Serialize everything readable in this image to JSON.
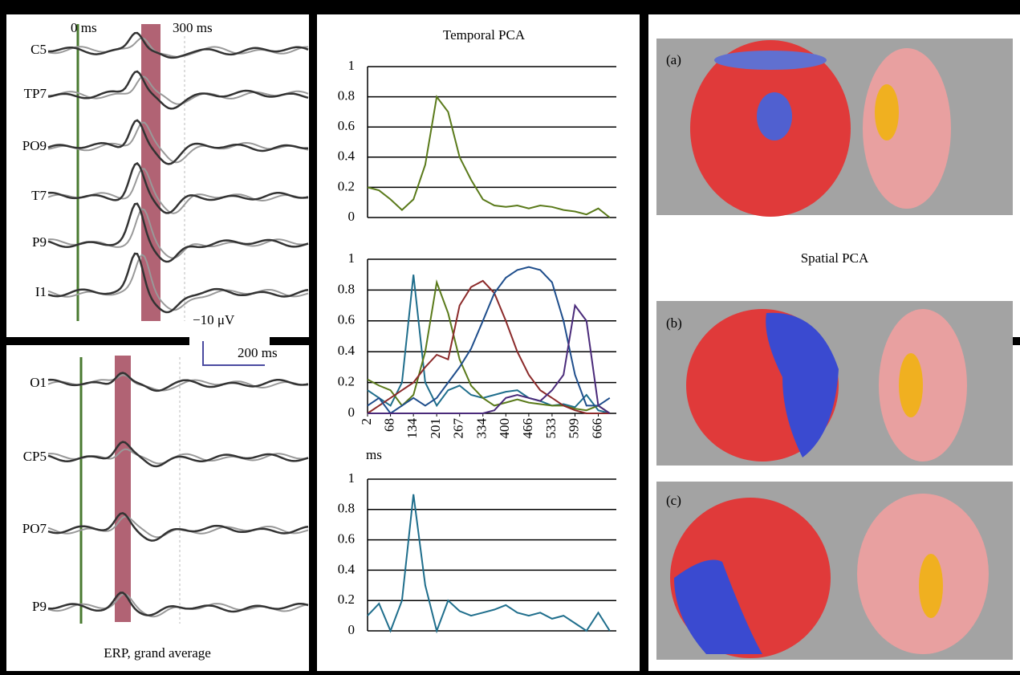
{
  "chart_data": [
    {
      "type": "line",
      "title": "Temporal PCA",
      "x": [
        2,
        35,
        68,
        101,
        134,
        168,
        201,
        234,
        267,
        300,
        334,
        367,
        400,
        433,
        466,
        499,
        533,
        566,
        599,
        632,
        666,
        699
      ],
      "xlim": [
        2,
        718
      ],
      "ylim": [
        0,
        1
      ],
      "yticks": [
        0,
        0.2,
        0.4,
        0.6,
        0.8,
        1
      ],
      "grid": true,
      "series": [
        {
          "color": "#5a7a1a",
          "values": [
            0.2,
            0.18,
            0.12,
            0.05,
            0.12,
            0.35,
            0.8,
            0.7,
            0.4,
            0.25,
            0.12,
            0.08,
            0.07,
            0.08,
            0.06,
            0.08,
            0.07,
            0.05,
            0.04,
            0.02,
            0.06,
            0.0
          ]
        }
      ]
    },
    {
      "type": "line",
      "xlabel": "ms",
      "x": [
        2,
        35,
        68,
        101,
        134,
        168,
        201,
        234,
        267,
        300,
        334,
        367,
        400,
        433,
        466,
        499,
        533,
        566,
        599,
        632,
        666,
        699
      ],
      "xlim": [
        2,
        718
      ],
      "ylim": [
        0,
        1
      ],
      "yticks": [
        0,
        0.2,
        0.4,
        0.6,
        0.8,
        1
      ],
      "grid": true,
      "xticks": [
        2,
        68,
        134,
        201,
        267,
        334,
        400,
        466,
        533,
        599,
        666
      ],
      "series": [
        {
          "color": "#1f6e8c",
          "values": [
            0.15,
            0.1,
            0.05,
            0.2,
            0.9,
            0.2,
            0.05,
            0.15,
            0.18,
            0.12,
            0.1,
            0.12,
            0.14,
            0.15,
            0.1,
            0.08,
            0.05,
            0.06,
            0.04,
            0.12,
            0.02,
            0.0
          ]
        },
        {
          "color": "#5a7a1a",
          "values": [
            0.22,
            0.18,
            0.15,
            0.05,
            0.12,
            0.4,
            0.85,
            0.65,
            0.35,
            0.18,
            0.1,
            0.05,
            0.07,
            0.09,
            0.07,
            0.06,
            0.05,
            0.05,
            0.03,
            0.02,
            0.05,
            0.0
          ]
        },
        {
          "color": "#8b2a2a",
          "values": [
            0.0,
            0.05,
            0.1,
            0.15,
            0.2,
            0.3,
            0.38,
            0.35,
            0.7,
            0.82,
            0.86,
            0.78,
            0.6,
            0.4,
            0.25,
            0.15,
            0.1,
            0.05,
            0.02,
            0.0,
            0.0,
            0.0
          ]
        },
        {
          "color": "#1f4e8c",
          "values": [
            0.05,
            0.1,
            0.0,
            0.05,
            0.1,
            0.05,
            0.1,
            0.2,
            0.3,
            0.42,
            0.6,
            0.78,
            0.88,
            0.93,
            0.95,
            0.93,
            0.85,
            0.6,
            0.25,
            0.05,
            0.05,
            0.1
          ]
        },
        {
          "color": "#4a2a7a",
          "values": [
            0.0,
            0.0,
            0.0,
            0.0,
            0.0,
            0.0,
            0.0,
            0.0,
            0.0,
            0.0,
            0.0,
            0.02,
            0.1,
            0.12,
            0.1,
            0.08,
            0.15,
            0.25,
            0.7,
            0.6,
            0.05,
            0.0
          ]
        }
      ]
    },
    {
      "type": "line",
      "x": [
        2,
        35,
        68,
        101,
        134,
        168,
        201,
        234,
        267,
        300,
        334,
        367,
        400,
        433,
        466,
        499,
        533,
        566,
        599,
        632,
        666,
        699
      ],
      "xlim": [
        2,
        718
      ],
      "ylim": [
        0,
        1
      ],
      "yticks": [
        0,
        0.2,
        0.4,
        0.6,
        0.8,
        1
      ],
      "grid": true,
      "series": [
        {
          "color": "#1f6e8c",
          "values": [
            0.1,
            0.18,
            0.0,
            0.2,
            0.9,
            0.3,
            0.0,
            0.2,
            0.13,
            0.1,
            0.12,
            0.14,
            0.17,
            0.12,
            0.1,
            0.12,
            0.08,
            0.1,
            0.05,
            0.0,
            0.12,
            0.0
          ]
        }
      ]
    }
  ],
  "erp": {
    "markers": [
      "0 ms",
      "300 ms"
    ],
    "channels_top": [
      "C5",
      "TP7",
      "PO9",
      "T7",
      "P9",
      "I1"
    ],
    "scale": [
      "−10 μV",
      "200 ms"
    ],
    "channels_bottom": [
      "O1",
      "CP5",
      "PO7",
      "P9"
    ],
    "caption": "ERP, grand average"
  },
  "spatial": {
    "labels": [
      "(a)",
      "(b)",
      "(c)"
    ],
    "title": "Spatial PCA"
  }
}
